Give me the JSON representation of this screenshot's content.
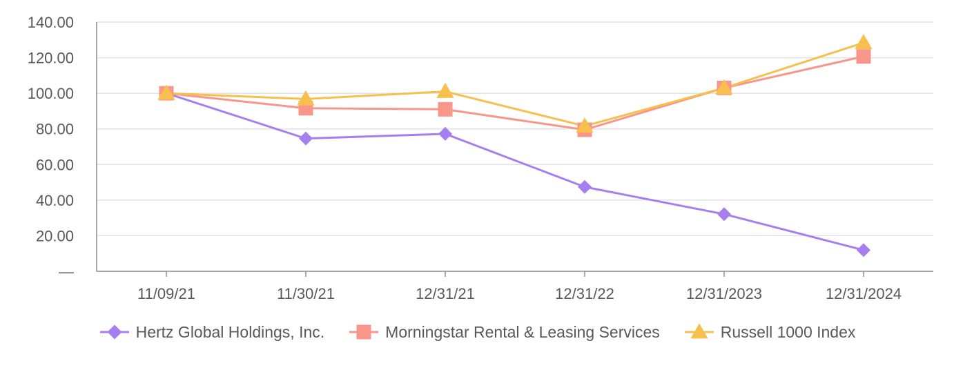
{
  "chart_data": {
    "type": "line",
    "title": "",
    "xlabel": "",
    "ylabel": "",
    "categories": [
      "11/09/21",
      "11/30/21",
      "12/31/21",
      "12/31/22",
      "12/31/2023",
      "12/31/2024"
    ],
    "y_ticks": [
      "—",
      "20.00",
      "40.00",
      "60.00",
      "80.00",
      "100.00",
      "120.00",
      "140.00"
    ],
    "ylim": [
      0,
      140
    ],
    "grid": true,
    "legend_position": "bottom",
    "series": [
      {
        "name": "Hertz Global Holdings, Inc.",
        "marker": "diamond",
        "color": "#a57ff0",
        "values": [
          100.0,
          74.6,
          77.2,
          47.4,
          32.1,
          11.9
        ]
      },
      {
        "name": "Morningstar Rental & Leasing Services",
        "marker": "square",
        "color": "#f8968c",
        "values": [
          100.0,
          91.6,
          91.0,
          79.5,
          103.0,
          120.7
        ]
      },
      {
        "name": "Russell 1000 Index",
        "marker": "triangle",
        "color": "#f7bf4d",
        "values": [
          100.0,
          96.8,
          101.0,
          81.6,
          103.0,
          128.4
        ]
      }
    ]
  }
}
